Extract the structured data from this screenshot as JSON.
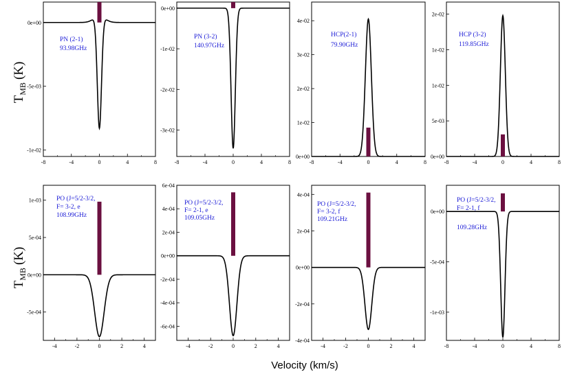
{
  "figure": {
    "xlabel": "Velocity (km/s)",
    "ylabel_main": "T",
    "ylabel_sub": "MB",
    "ylabel_unit": "(K)",
    "line_color": "#000000",
    "bar_color": "#6b1040",
    "label_color": "#1a1ad6"
  },
  "chart_data": [
    {
      "type": "line",
      "title": "PN (2-1) 93.98GHz",
      "label_lines": [
        "PN (2-1)",
        "93.98GHz"
      ],
      "xlim": [
        -8,
        8
      ],
      "ylim": [
        -0.0105,
        0.0016
      ],
      "xticks": [
        -8,
        -4,
        0,
        4,
        8
      ],
      "xtick_labels": [
        "-8",
        "-4",
        "0",
        "4",
        "8"
      ],
      "yticks": [
        0,
        -0.005,
        -0.01
      ],
      "ytick_labels": [
        "0e+00",
        "-5e-03",
        "-1e-02"
      ],
      "profile": {
        "kind": "absorption",
        "amp": -0.0088,
        "width": 0.3,
        "wing_amp": 0.0005,
        "wing_width": 0.8
      },
      "bar": {
        "x": 0,
        "y0": 0,
        "y1": 0.0016
      }
    },
    {
      "type": "line",
      "title": "PN (3-2) 140.97GHz",
      "label_lines": [
        "PN (3-2)",
        "140.97GHz"
      ],
      "xlim": [
        -8,
        8
      ],
      "ylim": [
        -0.0365,
        0.0015
      ],
      "xticks": [
        -8,
        -4,
        0,
        4,
        8
      ],
      "xtick_labels": [
        "-8",
        "-4",
        "0",
        "4",
        "8"
      ],
      "yticks": [
        0,
        -0.01,
        -0.02,
        -0.03
      ],
      "ytick_labels": [
        "0e+00",
        "-1e-02",
        "-2e-02",
        "-3e-02"
      ],
      "profile": {
        "kind": "absorption",
        "amp": -0.0345,
        "width": 0.3,
        "wing_amp": 0,
        "wing_width": 1
      },
      "bar": {
        "x": 0,
        "y0": 0,
        "y1": 0.0015
      }
    },
    {
      "type": "line",
      "title": "HCP(2-1) 79.90GHz",
      "label_lines": [
        "HCP(2-1)",
        "79.90GHz"
      ],
      "xlim": [
        -8,
        8
      ],
      "ylim": [
        0,
        0.0455
      ],
      "xticks": [
        -8,
        -4,
        0,
        4,
        8
      ],
      "xtick_labels": [
        "-8",
        "-4",
        "0",
        "4",
        "8"
      ],
      "yticks": [
        0,
        0.01,
        0.02,
        0.03,
        0.04
      ],
      "ytick_labels": [
        "0e+00",
        "1e-02",
        "2e-02",
        "3e-02",
        "4e-02"
      ],
      "profile": {
        "kind": "emission",
        "amp": 0.0405,
        "width": 0.42,
        "wing_amp": 0,
        "wing_width": 1
      },
      "bar": {
        "x": 0,
        "y0": 0,
        "y1": 0.0085
      }
    },
    {
      "type": "line",
      "title": "HCP (3-2) 119.85GHz",
      "label_lines": [
        "HCP (3-2)",
        "119.85GHz"
      ],
      "xlim": [
        -8,
        8
      ],
      "ylim": [
        0,
        0.0217
      ],
      "xticks": [
        -8,
        -4,
        0,
        4,
        8
      ],
      "xtick_labels": [
        "-8",
        "-4",
        "0",
        "4",
        "8"
      ],
      "yticks": [
        0,
        0.005,
        0.01,
        0.015,
        0.02
      ],
      "ytick_labels": [
        "0e+00",
        "5e-03",
        "1e-02",
        "1e-02",
        "2e-02"
      ],
      "profile": {
        "kind": "emission",
        "amp": 0.0198,
        "width": 0.35,
        "wing_amp": 0,
        "wing_width": 1
      },
      "bar": {
        "x": 0,
        "y0": 0,
        "y1": 0.0031
      }
    },
    {
      "type": "line",
      "title": "PO (J=5/2-3/2, F= 3-2, e 108.99GHz",
      "label_lines": [
        "PO (J=5/2-3/2,",
        "F= 3-2, e",
        "108.99GHz"
      ],
      "xlim": [
        -5,
        5
      ],
      "ylim": [
        -0.00088,
        0.0012
      ],
      "xticks": [
        -4,
        -2,
        0,
        2,
        4
      ],
      "xtick_labels": [
        "-4",
        "-2",
        "0",
        "2",
        "4"
      ],
      "yticks": [
        0.001,
        0.0005,
        0,
        -0.0005
      ],
      "ytick_labels": [
        "1e-03",
        "5e-04",
        "0e+00",
        "-5e-04"
      ],
      "profile": {
        "kind": "absorption",
        "amp": -0.00083,
        "width": 0.42,
        "wing_amp": 0,
        "wing_width": 1
      },
      "bar": {
        "x": 0,
        "y0": 0,
        "y1": 0.00098
      }
    },
    {
      "type": "line",
      "title": "PO (J=5/2-3/2, F= 2-1, e 109.05GHz",
      "label_lines": [
        "PO (J=5/2-3/2,",
        "F= 2-1, e",
        "109.05GHz"
      ],
      "xlim": [
        -5,
        5
      ],
      "ylim": [
        -0.00072,
        0.0006
      ],
      "xticks": [
        -4,
        -2,
        0,
        2,
        4
      ],
      "xtick_labels": [
        "-4",
        "-2",
        "0",
        "2",
        "4"
      ],
      "yticks": [
        0.0006,
        0.0004,
        0.0002,
        0,
        -0.0002,
        -0.0004,
        -0.0006
      ],
      "ytick_labels": [
        "6e-04",
        "4e-04",
        "2e-04",
        "0e+00",
        "-2e-04",
        "-4e-04",
        "-6e-04"
      ],
      "profile": {
        "kind": "absorption",
        "amp": -0.00068,
        "width": 0.33,
        "wing_amp": 0,
        "wing_width": 1
      },
      "bar": {
        "x": 0,
        "y0": 0,
        "y1": 0.00054
      }
    },
    {
      "type": "line",
      "title": "PO (J=5/2-3/2, F= 3-2, f 109.21GHz",
      "label_lines": [
        "PO (J=5/2-3/2,",
        "F= 3-2, f",
        "109.21GHz"
      ],
      "xlim": [
        -5,
        5
      ],
      "ylim": [
        -0.0004,
        0.00045
      ],
      "xticks": [
        -4,
        -2,
        0,
        2,
        4
      ],
      "xtick_labels": [
        "-4",
        "-2",
        "0",
        "2",
        "4"
      ],
      "yticks": [
        0.0004,
        0.0002,
        0,
        -0.0002,
        -0.0004
      ],
      "ytick_labels": [
        "4e-04",
        "2e-04",
        "0e+00",
        "-2e-04",
        "-4e-04"
      ],
      "profile": {
        "kind": "absorption",
        "amp": -0.00034,
        "width": 0.3,
        "wing_amp": 0,
        "wing_width": 1
      },
      "bar": {
        "x": 0,
        "y0": 0,
        "y1": 0.00041
      }
    },
    {
      "type": "line",
      "title": "PO (J=5/2-3/2, F= 2-1, f 109.28GHz",
      "label_lines": [
        "PO (J=5/2-3/2,",
        "F= 2-1, f",
        "109.28GHz"
      ],
      "xlim": [
        -8,
        8
      ],
      "ylim": [
        -0.00128,
        0.00026
      ],
      "xticks": [
        -8,
        -4,
        0,
        4,
        8
      ],
      "xtick_labels": [
        "-8",
        "-4",
        "0",
        "4",
        "8"
      ],
      "yticks": [
        0,
        -0.0005,
        -0.001
      ],
      "ytick_labels": [
        "0e+00",
        "-5e-04",
        "-1e-03"
      ],
      "profile": {
        "kind": "absorption",
        "amp": -0.00125,
        "width": 0.3,
        "wing_amp": 0,
        "wing_width": 1
      },
      "bar": {
        "x": 0,
        "y0": 0,
        "y1": 0.00018
      }
    }
  ]
}
